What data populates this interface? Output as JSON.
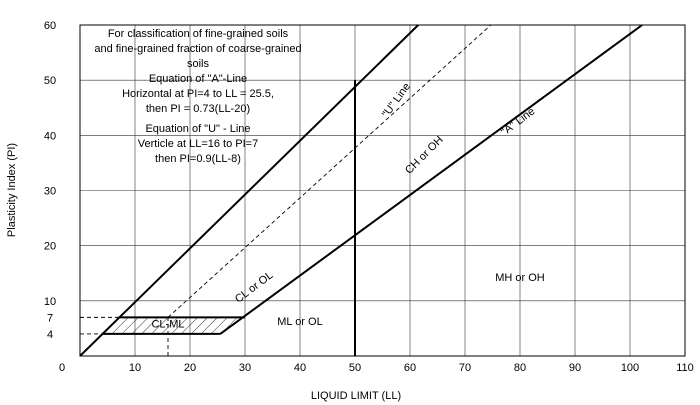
{
  "chart_data": {
    "type": "line",
    "title": "",
    "xlabel": "LIQUID LIMIT (LL)",
    "ylabel": "Plasticity Index (PI)",
    "xlim": [
      0,
      110
    ],
    "ylim": [
      0,
      60
    ],
    "grid": true,
    "x_ticks": [
      {
        "value": 0,
        "label": "0"
      },
      {
        "value": 10,
        "label": "10"
      },
      {
        "value": 20,
        "label": "20"
      },
      {
        "value": 30,
        "label": "30"
      },
      {
        "value": 40,
        "label": "40"
      },
      {
        "value": 50,
        "label": "50"
      },
      {
        "value": 60,
        "label": "60"
      },
      {
        "value": 70,
        "label": "70"
      },
      {
        "value": 80,
        "label": "80"
      },
      {
        "value": 90,
        "label": "90"
      },
      {
        "value": 100,
        "label": "100"
      },
      {
        "value": 110,
        "label": "110"
      }
    ],
    "y_ticks": [
      {
        "value": 4,
        "label": "4"
      },
      {
        "value": 7,
        "label": "7"
      },
      {
        "value": 10,
        "label": "10"
      },
      {
        "value": 20,
        "label": "20"
      },
      {
        "value": 30,
        "label": "30"
      },
      {
        "value": 40,
        "label": "40"
      },
      {
        "value": 50,
        "label": "50"
      },
      {
        "value": 60,
        "label": "60"
      }
    ],
    "series": [
      {
        "name": "\"A\" Line",
        "style": "solid",
        "x": [
          25.5,
          102.2
        ],
        "y": [
          4,
          60
        ]
      },
      {
        "name": "\"U\" Line",
        "style": "dashed",
        "x": [
          16,
          74.7
        ],
        "y": [
          7,
          60
        ]
      },
      {
        "name": "",
        "style": "solid",
        "x": [
          0,
          61.5
        ],
        "y": [
          0,
          60
        ]
      },
      {
        "name": "",
        "style": "solid",
        "x": [
          50,
          50
        ],
        "y": [
          0,
          50
        ]
      },
      {
        "name": "",
        "style": "solid",
        "x": [
          4,
          25.5
        ],
        "y": [
          4,
          4
        ]
      },
      {
        "name": "",
        "style": "solid",
        "x": [
          7,
          30
        ],
        "y": [
          7,
          7
        ]
      },
      {
        "name": "",
        "style": "dashed",
        "x": [
          0,
          7
        ],
        "y": [
          7,
          7
        ]
      },
      {
        "name": "",
        "style": "dashed",
        "x": [
          0,
          4
        ],
        "y": [
          4,
          4
        ]
      },
      {
        "name": "",
        "style": "dashed",
        "x": [
          16,
          16
        ],
        "y": [
          0,
          7
        ]
      }
    ],
    "regions": [
      {
        "label": "CL-ML",
        "x": [
          4,
          7,
          30,
          25.5
        ],
        "y": [
          4,
          7,
          7,
          4
        ]
      }
    ],
    "annotations": [
      {
        "text": "\"U\" Line",
        "x": 58,
        "y": 46,
        "rotate": -54
      },
      {
        "text": "\"A\" Line",
        "x": 80,
        "y": 42,
        "rotate": -37
      },
      {
        "text": "CH or OH",
        "x": 63,
        "y": 36,
        "rotate": -45
      },
      {
        "text": "CL or OL",
        "x": 32,
        "y": 12,
        "rotate": -37
      },
      {
        "text": "ML or OL",
        "x": 40,
        "y": 5.6,
        "rotate": 0
      },
      {
        "text": "MH or OH",
        "x": 80,
        "y": 13.6,
        "rotate": 0
      },
      {
        "text": "CL-ML",
        "x": 16,
        "y": 5.2,
        "rotate": 0
      }
    ],
    "notes": [
      "For classification of fine-grained soils",
      "and fine-grained fraction of coarse-grained",
      "soils",
      "Equation of \"A\"-Line",
      "Horizontal at PI=4 to LL = 25.5,",
      "then PI = 0.73(LL-20)",
      "Equation of \"U\" - Line",
      "Verticle at LL=16 to PI=7",
      "then PI=0.9(LL-8)"
    ]
  }
}
